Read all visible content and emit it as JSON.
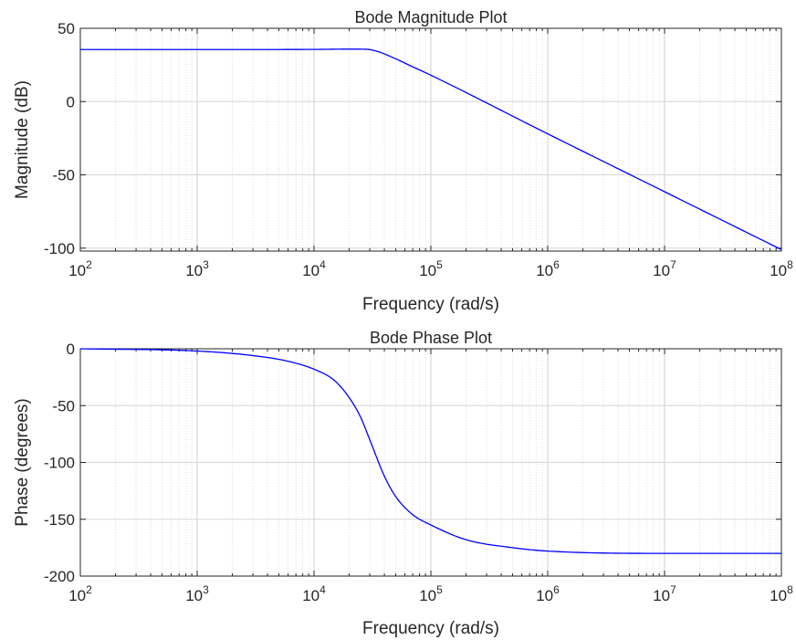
{
  "chart_data": [
    {
      "type": "line",
      "title": "Bode Magnitude Plot",
      "xlabel": "Frequency (rad/s)",
      "ylabel": "Magnitude (dB)",
      "xscale": "log",
      "xlim": [
        100,
        100000000
      ],
      "ylim": [
        -102,
        50
      ],
      "x_ticks": [
        "10^2",
        "10^3",
        "10^4",
        "10^5",
        "10^6",
        "10^7",
        "10^8"
      ],
      "y_ticks": [
        50,
        0,
        -50,
        -100
      ],
      "grid": "on",
      "series": [
        {
          "color": "#0000ff",
          "x": [
            100,
            1000,
            10000,
            20000,
            28000,
            35000,
            50000,
            70000,
            100000,
            1000000,
            10000000,
            100000000
          ],
          "y": [
            35.5,
            35.5,
            35.6,
            35.8,
            35.7,
            34.2,
            29.2,
            23.7,
            18,
            -22,
            -61.5,
            -101
          ]
        }
      ]
    },
    {
      "type": "line",
      "title": "Bode Phase Plot",
      "xlabel": "Frequency (rad/s)",
      "ylabel": "Phase (degrees)",
      "xscale": "log",
      "xlim": [
        100,
        100000000
      ],
      "ylim": [
        -200,
        0
      ],
      "x_ticks": [
        "10^2",
        "10^3",
        "10^4",
        "10^5",
        "10^6",
        "10^7",
        "10^8"
      ],
      "y_ticks": [
        0,
        -50,
        -100,
        -150,
        -200
      ],
      "grid": "on",
      "series": [
        {
          "color": "#0000ff",
          "x": [
            100,
            1000,
            3000,
            6000,
            10000,
            15000,
            20000,
            25000,
            30000,
            40000,
            50000,
            70000,
            100000,
            200000,
            500000,
            1000000,
            10000000,
            100000000
          ],
          "y": [
            0,
            -2,
            -6,
            -11,
            -18,
            -28,
            -43,
            -60,
            -80,
            -112,
            -130,
            -146,
            -155,
            -168,
            -175,
            -178,
            -180,
            -180
          ]
        }
      ]
    }
  ]
}
